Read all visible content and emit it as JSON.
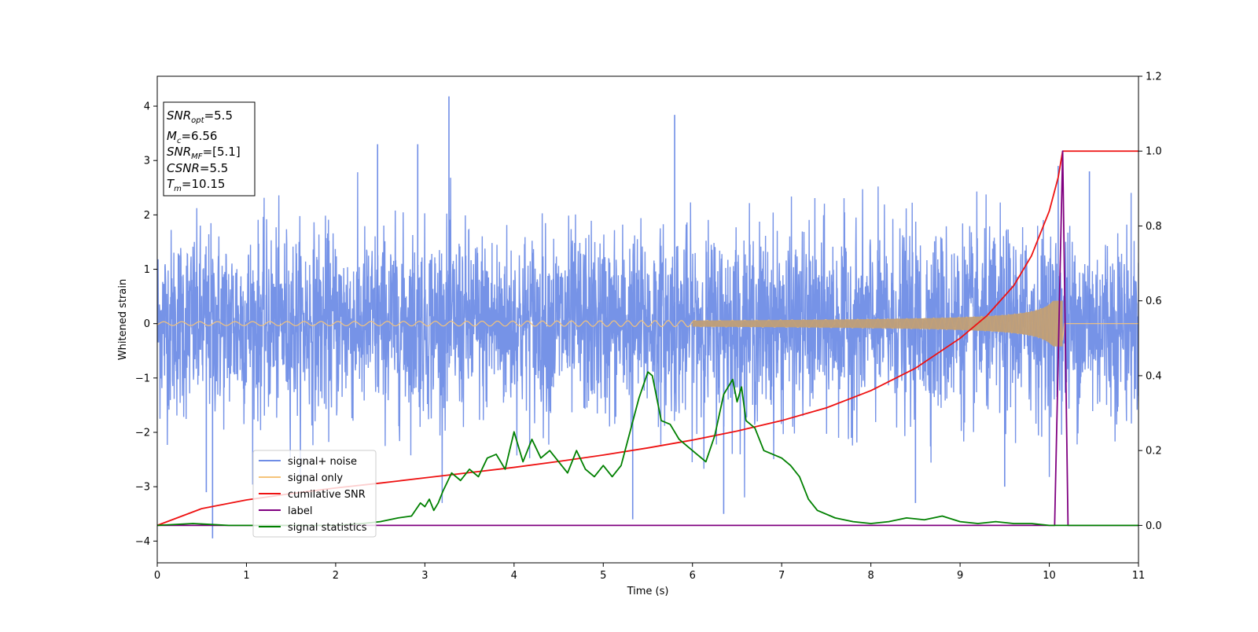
{
  "chart_data": {
    "type": "line",
    "xlabel": "Time (s)",
    "ylabel": "Whitened strain",
    "xlim": [
      0,
      11
    ],
    "ylim": [
      -4.4,
      4.55
    ],
    "y2lim": [
      -0.1,
      1.2
    ],
    "xticks": [
      "0",
      "1",
      "2",
      "3",
      "4",
      "5",
      "6",
      "7",
      "8",
      "9",
      "10",
      "11"
    ],
    "yticks": [
      "−4",
      "−3",
      "−2",
      "−1",
      "0",
      "1",
      "2",
      "3",
      "4"
    ],
    "y2ticks": [
      "0.0",
      "0.2",
      "0.4",
      "0.6",
      "0.8",
      "1.0",
      "1.2"
    ],
    "grid": false,
    "legend_position": "lower-left",
    "info_box": {
      "lines": [
        {
          "main": "SNR",
          "sub": "opt",
          "rest": "=5.5"
        },
        {
          "main": "M",
          "sub": "c",
          "rest": "=6.56"
        },
        {
          "main": "SNR",
          "sub": "MF",
          "rest": "=[5.1]"
        },
        {
          "main": "CSNR",
          "sub": "",
          "rest": "=5.5"
        },
        {
          "main": "T",
          "sub": "m",
          "rest": "=10.15"
        }
      ]
    },
    "series": [
      {
        "name": "signal+ noise",
        "color": "#6f8de6",
        "axis": "left",
        "kind": "noise",
        "envelope_low": -2.5,
        "envelope_high": 2.3,
        "spikes": [
          {
            "x": 3.27,
            "y": 4.18
          },
          {
            "x": 5.8,
            "y": 3.84
          },
          {
            "x": 2.47,
            "y": 3.3
          },
          {
            "x": 2.92,
            "y": 3.3
          },
          {
            "x": 0.62,
            "y": -3.95
          },
          {
            "x": 5.33,
            "y": -3.6
          },
          {
            "x": 6.35,
            "y": -3.5
          },
          {
            "x": 10.1,
            "y": 2.9
          },
          {
            "x": 10.45,
            "y": 2.8
          },
          {
            "x": 0.55,
            "y": -3.1
          },
          {
            "x": 9.5,
            "y": -3.0
          },
          {
            "x": 8.5,
            "y": -3.3
          }
        ]
      },
      {
        "name": "signal only",
        "color": "#f5c47a",
        "axis": "left",
        "kind": "chirp",
        "t_merger": 10.15
      },
      {
        "name": "cumilative SNR",
        "color": "#ee1111",
        "axis": "right",
        "x": [
          0,
          0.5,
          1,
          1.5,
          2,
          2.5,
          3,
          3.5,
          4,
          4.5,
          5,
          5.5,
          6,
          6.5,
          7,
          7.5,
          8,
          8.5,
          9,
          9.3,
          9.6,
          9.8,
          10,
          10.1,
          10.15,
          11
        ],
        "y": [
          0.0,
          0.045,
          0.068,
          0.085,
          0.1,
          0.113,
          0.127,
          0.141,
          0.155,
          0.171,
          0.188,
          0.207,
          0.228,
          0.252,
          0.28,
          0.314,
          0.36,
          0.42,
          0.5,
          0.56,
          0.64,
          0.72,
          0.84,
          0.93,
          1.0,
          1.0
        ]
      },
      {
        "name": "label",
        "color": "#800080",
        "axis": "right",
        "x": [
          0,
          10.06,
          10.15,
          10.21,
          11
        ],
        "y": [
          0.0,
          0.0,
          1.0,
          0.0,
          0.0
        ]
      },
      {
        "name": "signal statistics",
        "color": "#008000",
        "axis": "right",
        "x": [
          0,
          0.4,
          0.8,
          1.2,
          1.6,
          2.0,
          2.3,
          2.5,
          2.7,
          2.85,
          2.95,
          3.0,
          3.05,
          3.1,
          3.15,
          3.2,
          3.3,
          3.4,
          3.5,
          3.6,
          3.7,
          3.8,
          3.9,
          4.0,
          4.1,
          4.2,
          4.3,
          4.4,
          4.5,
          4.6,
          4.7,
          4.8,
          4.9,
          5.0,
          5.1,
          5.2,
          5.3,
          5.4,
          5.5,
          5.55,
          5.65,
          5.75,
          5.85,
          5.95,
          6.05,
          6.15,
          6.25,
          6.35,
          6.45,
          6.5,
          6.55,
          6.6,
          6.7,
          6.8,
          6.9,
          7.0,
          7.1,
          7.2,
          7.3,
          7.4,
          7.6,
          7.8,
          8.0,
          8.2,
          8.4,
          8.6,
          8.8,
          9.0,
          9.2,
          9.4,
          9.6,
          9.8,
          10.0,
          10.1,
          10.2,
          10.6,
          11.0
        ],
        "y": [
          0.0,
          0.005,
          0.0,
          0.0,
          0.0,
          0.0,
          0.005,
          0.01,
          0.02,
          0.025,
          0.06,
          0.05,
          0.07,
          0.04,
          0.06,
          0.09,
          0.14,
          0.12,
          0.15,
          0.13,
          0.18,
          0.19,
          0.15,
          0.25,
          0.17,
          0.23,
          0.18,
          0.2,
          0.17,
          0.14,
          0.2,
          0.15,
          0.13,
          0.16,
          0.13,
          0.16,
          0.25,
          0.34,
          0.41,
          0.4,
          0.28,
          0.27,
          0.23,
          0.21,
          0.19,
          0.17,
          0.24,
          0.35,
          0.39,
          0.33,
          0.37,
          0.28,
          0.26,
          0.2,
          0.19,
          0.18,
          0.16,
          0.13,
          0.07,
          0.04,
          0.02,
          0.01,
          0.005,
          0.01,
          0.02,
          0.015,
          0.025,
          0.01,
          0.005,
          0.01,
          0.005,
          0.005,
          0.0,
          0.0,
          0.0,
          0.0,
          0.0
        ]
      }
    ]
  }
}
